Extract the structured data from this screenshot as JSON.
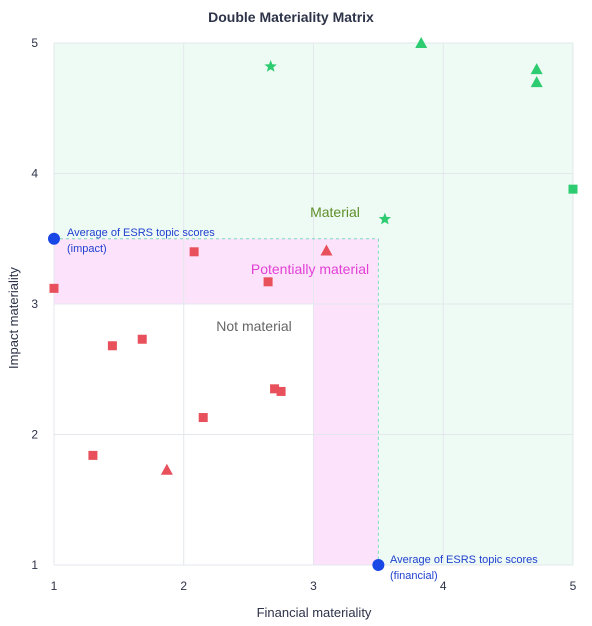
{
  "chart_data": {
    "type": "scatter",
    "title": "Double Materiality Matrix",
    "xlabel": "Financial materiality",
    "ylabel": "Impact materiality",
    "xlim": [
      1,
      5
    ],
    "ylim": [
      1,
      5
    ],
    "xticks": [
      "1",
      "2",
      "3",
      "4",
      "5"
    ],
    "yticks": [
      "1",
      "2",
      "3",
      "4",
      "5"
    ],
    "grid": true,
    "thresholds": {
      "financial": 3.5,
      "impact": 3.5
    },
    "zone_labels": {
      "material": "Material",
      "potentially": "Potentially material",
      "not": "Not material"
    },
    "colors": {
      "material": "#2ecc71",
      "not_material": "#e8505b",
      "average": "#1947e6",
      "material_bg": "#eefaf4",
      "potential_bg": "#fce3fb",
      "material_text": "#5e8f2a",
      "potential_text": "#e23fd6",
      "not_text": "#666666",
      "average_text": "#1f3fcf",
      "grid": "#e4e7ec"
    },
    "averages": [
      {
        "x": 1.0,
        "y": 3.5,
        "lines": [
          "Average of ESRS topic scores",
          "(impact)"
        ]
      },
      {
        "x": 3.5,
        "y": 1.0,
        "lines": [
          "Average of ESRS topic scores",
          "(financial)"
        ]
      }
    ],
    "points": [
      {
        "x": 3.83,
        "y": 5.0,
        "shape": "triangle",
        "status": "material"
      },
      {
        "x": 4.72,
        "y": 4.8,
        "shape": "triangle",
        "status": "material"
      },
      {
        "x": 4.72,
        "y": 4.7,
        "shape": "triangle",
        "status": "material"
      },
      {
        "x": 2.67,
        "y": 4.82,
        "shape": "star",
        "status": "material"
      },
      {
        "x": 3.55,
        "y": 3.65,
        "shape": "star",
        "status": "material"
      },
      {
        "x": 5.0,
        "y": 3.88,
        "shape": "square",
        "status": "material"
      },
      {
        "x": 2.08,
        "y": 3.4,
        "shape": "square",
        "status": "not"
      },
      {
        "x": 3.1,
        "y": 3.41,
        "shape": "triangle",
        "status": "not"
      },
      {
        "x": 2.65,
        "y": 3.17,
        "shape": "square",
        "status": "not"
      },
      {
        "x": 1.0,
        "y": 3.12,
        "shape": "square",
        "status": "not"
      },
      {
        "x": 1.45,
        "y": 2.68,
        "shape": "square",
        "status": "not"
      },
      {
        "x": 1.68,
        "y": 2.73,
        "shape": "square",
        "status": "not"
      },
      {
        "x": 2.7,
        "y": 2.35,
        "shape": "square",
        "status": "not"
      },
      {
        "x": 2.75,
        "y": 2.33,
        "shape": "square",
        "status": "not"
      },
      {
        "x": 2.15,
        "y": 2.13,
        "shape": "square",
        "status": "not"
      },
      {
        "x": 1.3,
        "y": 1.84,
        "shape": "square",
        "status": "not"
      },
      {
        "x": 1.87,
        "y": 1.73,
        "shape": "triangle",
        "status": "not"
      }
    ]
  }
}
